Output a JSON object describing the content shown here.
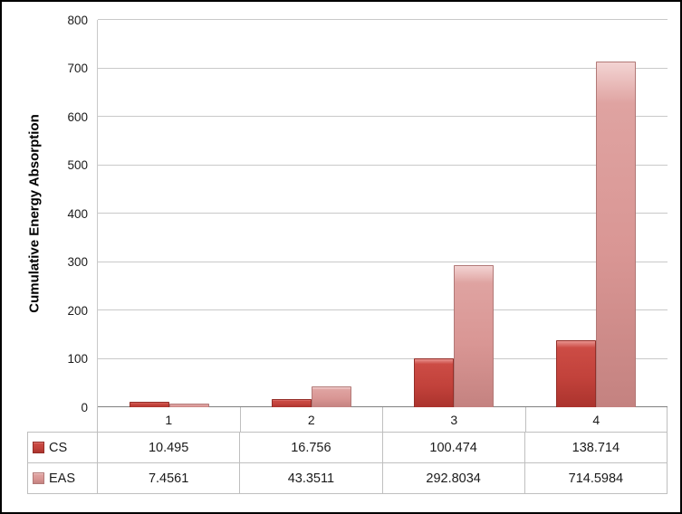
{
  "chart_data": {
    "type": "bar",
    "title": "",
    "xlabel": "",
    "ylabel": "Cumulative Energy Absorption",
    "ylim": [
      0,
      800
    ],
    "ytick_step": 100,
    "grid": "horizontal",
    "legend_position": "data-table-left-column",
    "categories": [
      "1",
      "2",
      "3",
      "4"
    ],
    "series": [
      {
        "name": "CS",
        "color": "#c2423b",
        "values": [
          10.495,
          16.756,
          100.474,
          138.714
        ],
        "labels": [
          "10.495",
          "16.756",
          "100.474",
          "138.714"
        ]
      },
      {
        "name": "EAS",
        "color": "#d99694",
        "values": [
          7.4561,
          43.3511,
          292.8034,
          714.5984
        ],
        "labels": [
          "7.4561",
          "43.3511",
          "292.8034",
          "714.5984"
        ]
      }
    ]
  }
}
